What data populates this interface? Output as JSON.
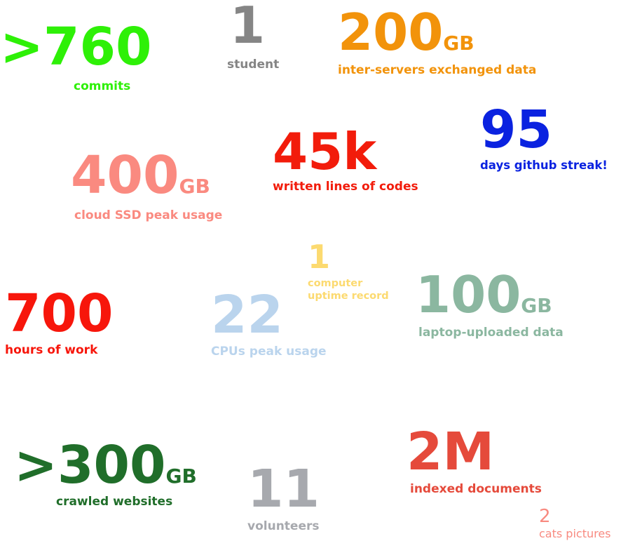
{
  "stats": [
    {
      "id": "commits",
      "value": ">760",
      "unit": "",
      "label": "commits",
      "color": "#2ef007"
    },
    {
      "id": "student",
      "value": "1",
      "unit": "",
      "label": "student",
      "color": "#858585"
    },
    {
      "id": "exchanged",
      "value": "200",
      "unit": "GB",
      "label": "inter-servers exchanged data",
      "color": "#f2930b"
    },
    {
      "id": "lines",
      "value": "45k",
      "unit": "",
      "label": "written lines of codes",
      "color": "#f21c0b"
    },
    {
      "id": "streak",
      "value": "95",
      "unit": "",
      "label": "days github streak!",
      "color": "#0a22e0"
    },
    {
      "id": "ssd",
      "value": "400",
      "unit": "GB",
      "label": "cloud SSD peak usage",
      "color": "#fa8a80"
    },
    {
      "id": "uptime",
      "value": "1",
      "unit": "",
      "label_lines": [
        "computer",
        "uptime record"
      ],
      "color": "#fcda70"
    },
    {
      "id": "hours",
      "value": "700",
      "unit": "",
      "label": "hours of work",
      "color": "#f7160b"
    },
    {
      "id": "cpus",
      "value": "22",
      "unit": "",
      "label": "CPUs peak usage",
      "color": "#bad4ed"
    },
    {
      "id": "uploaded",
      "value": "100",
      "unit": "GB",
      "label": "laptop-uploaded data",
      "color": "#8bb7a0"
    },
    {
      "id": "crawled",
      "value": ">300",
      "unit": "GB",
      "label": "crawled websites",
      "color": "#206e2a"
    },
    {
      "id": "volunteers",
      "value": "11",
      "unit": "",
      "label": "volunteers",
      "color": "#a7a9ae"
    },
    {
      "id": "indexed",
      "value": "2M",
      "unit": "",
      "label": "indexed documents",
      "color": "#e54a3b"
    },
    {
      "id": "cats",
      "value": "2",
      "unit": "",
      "label": "cats pictures",
      "color": "#f88a80"
    }
  ]
}
